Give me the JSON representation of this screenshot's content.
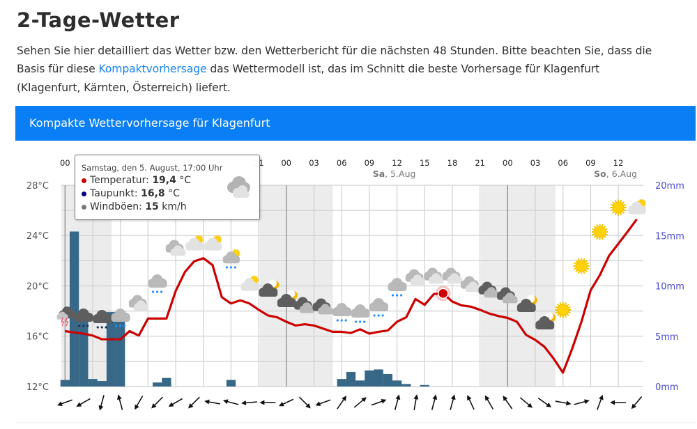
{
  "page": {
    "title": "2-Tage-Wetter",
    "intro": {
      "line1": "Sehen Sie hier detailliert das Wetter bzw. den Wetterbericht für die nächsten 48 Stunden. Bitte beachten Sie, dass die",
      "line2_before": "Basis für diese ",
      "line2_link": "Kompaktvorhersage",
      "line2_after": " das Wettermodell ist, das im Schnitt die beste Vorhersage für Klagenfurt",
      "line3": "(Klagenfurt, Kärnten, Österreich) liefert."
    },
    "panel_title": "Kompakte Wettervorhersage für Klagenfurt"
  },
  "tooltip": {
    "header": "Samstag, den 5. August, 17:00 Uhr",
    "temp_label": "Temperatur: ",
    "temp_value": "19,4",
    "temp_unit": " °C",
    "dew_label": "Taupunkt: ",
    "dew_value": "16,8",
    "dew_unit": " °C",
    "gust_label": "Windböen: ",
    "gust_value": "15",
    "gust_unit": " km/h",
    "icon": "cloudy-icon",
    "colors": {
      "temp": "#cc0000",
      "dew": "#00008b",
      "gust": "#777777"
    }
  },
  "chart_data": {
    "type": "line",
    "x_unit": "hours",
    "x_ticks": [
      {
        "hour": 0,
        "label": "00"
      },
      {
        "hour": 21,
        "label": "21"
      },
      {
        "hour": 24,
        "label": "00"
      },
      {
        "hour": 27,
        "label": "03"
      },
      {
        "hour": 30,
        "label": "06"
      },
      {
        "hour": 33,
        "label": "09"
      },
      {
        "hour": 36,
        "label": "12"
      },
      {
        "hour": 39,
        "label": "15"
      },
      {
        "hour": 42,
        "label": "18"
      },
      {
        "hour": 45,
        "label": "21"
      },
      {
        "hour": 48,
        "label": "00"
      },
      {
        "hour": 51,
        "label": "03"
      },
      {
        "hour": 54,
        "label": "06"
      },
      {
        "hour": 57,
        "label": "09"
      },
      {
        "hour": 60,
        "label": "12"
      }
    ],
    "day_labels": [
      {
        "hour": 36,
        "day": "Sa",
        "date": ", 5.Aug"
      },
      {
        "hour": 60,
        "day": "So",
        "date": ", 6.Aug"
      }
    ],
    "y_left": {
      "ticks": [
        "12°C",
        "16°C",
        "20°C",
        "24°C",
        "28°C"
      ],
      "tick_values": [
        12,
        16,
        20,
        24,
        28
      ],
      "range": [
        12,
        28
      ]
    },
    "y_right": {
      "ticks": [
        "0mm",
        "5mm",
        "10mm",
        "15mm",
        "20mm"
      ],
      "tick_values": [
        0,
        5,
        10,
        15,
        20
      ],
      "range": [
        0,
        20
      ]
    },
    "night_bands": [
      [
        -0.4,
        5.05
      ],
      [
        21.1,
        29.05
      ],
      [
        45.1,
        53.2
      ]
    ],
    "grid": true,
    "series": [
      {
        "name": "Temperatur",
        "color": "#cc0000",
        "unit": "°C",
        "values": [
          16.4,
          16.3,
          16.2,
          16.05,
          15.75,
          15.75,
          15.75,
          16.4,
          16.05,
          17.4,
          17.4,
          17.4,
          19.6,
          21.1,
          21.95,
          22.2,
          21.65,
          19.1,
          18.6,
          18.85,
          18.6,
          18.1,
          17.65,
          17.5,
          17.15,
          16.85,
          16.95,
          16.85,
          16.6,
          16.35,
          16.35,
          16.25,
          16.55,
          16.2,
          16.35,
          16.45,
          17.15,
          17.5,
          18.95,
          18.5,
          19.35,
          19.4,
          18.75,
          18.45,
          18.35,
          18.1,
          17.8,
          17.6,
          17.45,
          17.15,
          16.1,
          15.7,
          15.15,
          14.2,
          13.1,
          15.0,
          17.15,
          19.65,
          20.85,
          22.4,
          23.35,
          24.3,
          25.3
        ]
      },
      {
        "name": "Niederschlag",
        "color": "#386887",
        "unit": "mm",
        "type": "bar",
        "values": [
          0.65,
          15.4,
          7.5,
          0.75,
          0.55,
          7.4,
          7.4,
          0,
          0,
          0,
          0.4,
          0.85,
          0,
          0,
          0,
          0,
          0,
          0,
          0.65,
          0,
          0,
          0,
          0,
          0,
          0,
          0,
          0,
          0,
          0,
          0,
          0.75,
          1.45,
          0.6,
          1.6,
          1.7,
          1.25,
          0.6,
          0.25,
          0,
          0.15,
          0,
          0,
          0,
          0,
          0,
          0,
          0,
          0,
          0,
          0,
          0,
          0,
          0,
          0,
          0,
          0,
          0,
          0,
          0,
          0,
          0,
          0,
          0
        ]
      }
    ],
    "highlight": {
      "hour": 41,
      "value": 19.4
    },
    "icons": [
      "thunderstorm-icon",
      "cloud-rain-heavy-icon",
      "cloud-rain-heavy-icon",
      "cloud-rain-icon",
      "clouds-icon",
      "cloud-rain-icon",
      "clouds-icon",
      "partly-sunny-icon",
      "partly-sunny-icon",
      "cloud-sun-rain-icon",
      "partly-sunny-icon",
      "cloud-moon-icon",
      "cloud-moon-icon",
      "dark-clouds-icon",
      "dark-clouds-icon",
      "cloud-rain-icon",
      "cloud-rain-icon",
      "cloud-rain-icon",
      "cloud-rain-icon",
      "clouds-icon",
      "clouds-icon",
      "clouds-icon",
      "clouds-icon",
      "dark-clouds-icon",
      "dark-clouds-icon",
      "cloud-moon-icon",
      "cloud-moon-icon",
      "sun-icon",
      "sun-icon",
      "sun-icon",
      "sun-icon",
      "partly-sunny-icon"
    ],
    "wind_direction_deg": [
      250,
      240,
      195,
      345,
      210,
      225,
      240,
      225,
      280,
      285,
      265,
      270,
      245,
      135,
      250,
      35,
      50,
      70,
      15,
      10,
      15,
      15,
      335,
      330,
      325,
      130,
      125,
      100,
      75,
      20,
      270,
      220
    ]
  }
}
